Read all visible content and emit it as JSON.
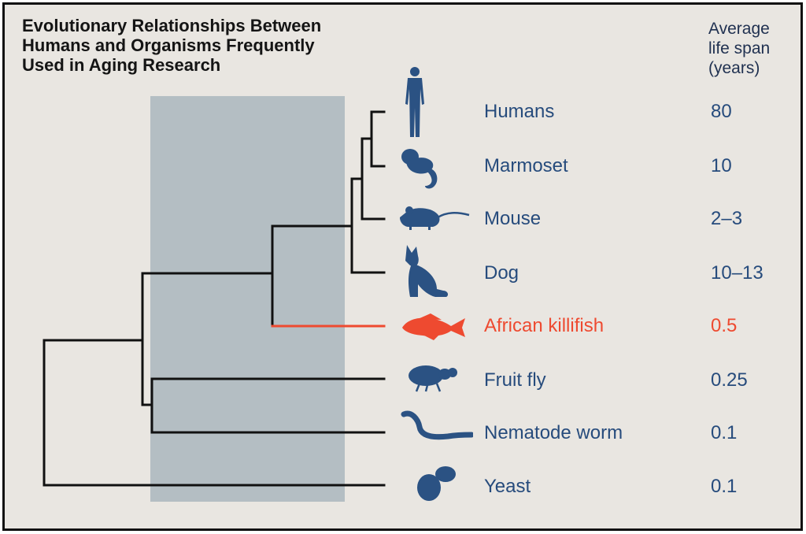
{
  "title_lines": [
    "Evolutionary Relationships Between",
    "Humans and Organisms Frequently",
    "Used in Aging Research"
  ],
  "lifespan_header_lines": [
    "Average",
    "life span",
    "(years)"
  ],
  "colors": {
    "text_blue": "#264b7c",
    "icon_blue": "#2b5283",
    "highlight": "#ee4a30",
    "shaded_band": "#b4bec3",
    "background": "#e9e6e1"
  },
  "organisms": [
    {
      "name": "Humans",
      "lifespan": "80",
      "icon": "human-silhouette-icon"
    },
    {
      "name": "Marmoset",
      "lifespan": "10",
      "icon": "marmoset-silhouette-icon"
    },
    {
      "name": "Mouse",
      "lifespan": "2–3",
      "icon": "mouse-silhouette-icon"
    },
    {
      "name": "Dog",
      "lifespan": "10–13",
      "icon": "dog-silhouette-icon"
    },
    {
      "name": "African killifish",
      "lifespan": "0.5",
      "icon": "killifish-silhouette-icon",
      "highlighted": true
    },
    {
      "name": "Fruit fly",
      "lifespan": "0.25",
      "icon": "fruit-fly-silhouette-icon"
    },
    {
      "name": "Nematode worm",
      "lifespan": "0.1",
      "icon": "nematode-worm-silhouette-icon"
    },
    {
      "name": "Yeast",
      "lifespan": "0.1",
      "icon": "yeast-silhouette-icon"
    }
  ]
}
